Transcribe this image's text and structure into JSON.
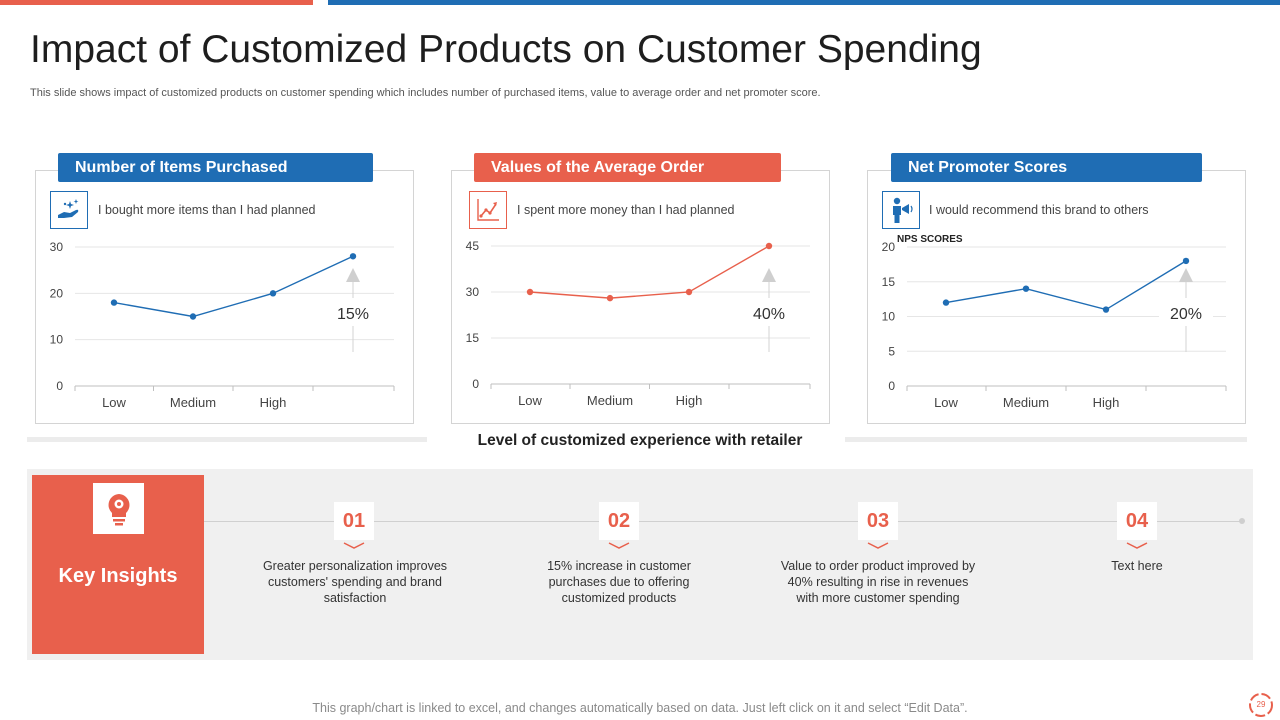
{
  "title": "Impact of Customized Products on Customer Spending",
  "subtitle": "This slide shows impact of customized products on customer spending which includes number of purchased items, value to average order and net promoter score.",
  "colors": {
    "red": "#E8604C",
    "blue": "#1F6DB4"
  },
  "cards": [
    {
      "header": "Number of Items Purchased",
      "statement": "I bought more items than I had planned",
      "icon": "hand-sparkle-icon"
    },
    {
      "header": "Values of the Average Order",
      "statement": "I spent more money than I had planned",
      "icon": "growth-chart-icon"
    },
    {
      "header": "Net Promoter Scores",
      "statement": "I would recommend this brand to others",
      "icon": "megaphone-person-icon"
    }
  ],
  "chart_data": [
    {
      "type": "line",
      "title": "Number of Items Purchased",
      "categories": [
        "Low",
        "Medium",
        "High",
        ""
      ],
      "values": [
        18,
        15,
        20,
        28
      ],
      "yticks": [
        0,
        10,
        20,
        30
      ],
      "ylim": [
        0,
        30
      ],
      "ylabel": "",
      "xlabel": "Level of customized experience with retailer",
      "annotation": "15%",
      "color": "#1F6DB4"
    },
    {
      "type": "line",
      "title": "Values of the Average Order",
      "categories": [
        "Low",
        "Medium",
        "High",
        ""
      ],
      "values": [
        30,
        28,
        30,
        45
      ],
      "yticks": [
        0,
        15,
        30,
        45
      ],
      "ylim": [
        0,
        45
      ],
      "ylabel": "",
      "xlabel": "Level of customized experience with retailer",
      "annotation": "40%",
      "color": "#E8604C"
    },
    {
      "type": "line",
      "title": "Net Promoter Scores",
      "categories": [
        "Low",
        "Medium",
        "High",
        ""
      ],
      "values": [
        12,
        14,
        11,
        18
      ],
      "yticks": [
        0,
        5,
        10,
        15,
        20
      ],
      "ylim": [
        0,
        20
      ],
      "ylabel": "NPS SCORES",
      "xlabel": "Level of customized experience with retailer",
      "annotation": "20%",
      "color": "#1F6DB4"
    }
  ],
  "x_caption": "Level of customized experience with retailer",
  "insights": {
    "label": "Key Insights",
    "icon": "lightbulb-gear-icon",
    "items": [
      {
        "number": "01",
        "text": "Greater personalization improves customers' spending and brand satisfaction"
      },
      {
        "number": "02",
        "text": "15% increase in customer purchases due to offering customized products"
      },
      {
        "number": "03",
        "text": "Value to order product improved by 40% resulting in rise in revenues with more customer spending"
      },
      {
        "number": "04",
        "text": "Text here"
      }
    ]
  },
  "footer": "This graph/chart is linked to excel, and changes automatically based on data. Just left click on it and select “Edit Data”.",
  "page_number": "29"
}
